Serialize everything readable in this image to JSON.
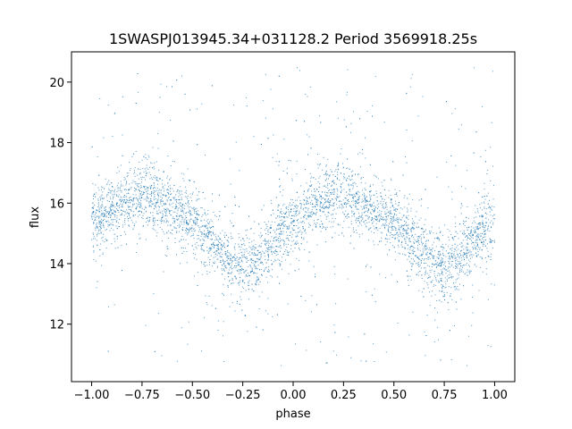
{
  "chart_data": {
    "type": "scatter",
    "title": "1SWASPJ013945.34+031128.2 Period 3569918.25s",
    "xlabel": "phase",
    "ylabel": "flux",
    "xlim": [
      -1.1,
      1.1
    ],
    "ylim": [
      10.1,
      21.0
    ],
    "xticks": [
      -1.0,
      -0.75,
      -0.5,
      -0.25,
      0.0,
      0.25,
      0.5,
      0.75,
      1.0
    ],
    "xtick_labels": [
      "−1.00",
      "−0.75",
      "−0.50",
      "−0.25",
      "0.00",
      "0.25",
      "0.50",
      "0.75",
      "1.00"
    ],
    "yticks": [
      12,
      14,
      16,
      18,
      20
    ],
    "ytick_labels": [
      "12",
      "14",
      "16",
      "18",
      "20"
    ],
    "grid": false,
    "marker_color": "#1f77b4",
    "series": [
      {
        "model": "mean flux vs phase (sinusoidal light curve, repeats every 1.0 in phase)",
        "x": [
          -1.0,
          -0.95,
          -0.9,
          -0.85,
          -0.8,
          -0.75,
          -0.7,
          -0.65,
          -0.6,
          -0.55,
          -0.5,
          -0.45,
          -0.4,
          -0.35,
          -0.3,
          -0.25,
          -0.2,
          -0.15,
          -0.1,
          -0.05,
          0.0,
          0.05,
          0.1,
          0.15,
          0.2,
          0.25,
          0.3,
          0.35,
          0.4,
          0.45,
          0.5,
          0.55,
          0.6,
          0.65,
          0.7,
          0.75,
          0.8,
          0.85,
          0.9,
          0.95,
          1.0
        ],
        "y": [
          15.2,
          15.6,
          15.8,
          16.0,
          16.2,
          16.3,
          16.2,
          16.0,
          15.8,
          15.6,
          15.4,
          15.0,
          14.7,
          14.3,
          14.0,
          13.9,
          14.0,
          14.3,
          14.8,
          15.2,
          15.3,
          15.6,
          15.9,
          16.1,
          16.2,
          16.3,
          16.2,
          16.0,
          15.8,
          15.6,
          15.4,
          15.0,
          14.7,
          14.3,
          14.0,
          13.9,
          14.0,
          14.3,
          14.8,
          15.1,
          15.2
        ],
        "scatter_sigma": 0.5,
        "outlier_range": [
          10.6,
          20.5
        ]
      }
    ]
  }
}
